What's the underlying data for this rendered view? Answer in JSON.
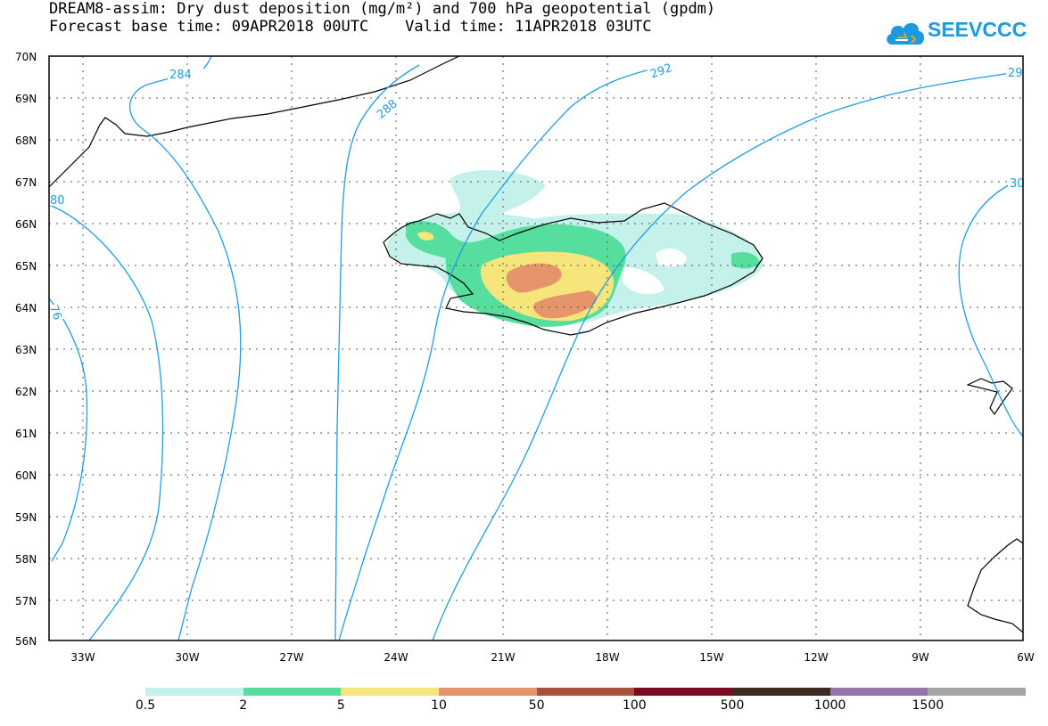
{
  "header": {
    "title_line1": "DREAM8-assim: Dry dust deposition (mg/m²) and 700 hPa geopotential (gpdm)",
    "title_line2": "Forecast base time: 09APR2018 00UTC    Valid time: 11APR2018 03UTC"
  },
  "logo": {
    "text": "SEEVCCC",
    "icon": "cloud-icon"
  },
  "map": {
    "lat_labels": [
      "70N",
      "69N",
      "68N",
      "67N",
      "66N",
      "65N",
      "64N",
      "63N",
      "62N",
      "61N",
      "60N",
      "59N",
      "58N",
      "57N",
      "56N"
    ],
    "lon_labels": [
      "33W",
      "30W",
      "27W",
      "24W",
      "21W",
      "18W",
      "15W",
      "12W",
      "9W",
      "6W"
    ],
    "contour_labels": [
      "284",
      "288",
      "292",
      "29",
      "30",
      "76",
      "80"
    ],
    "contour_color": "#1f9ee0"
  },
  "legend": {
    "colors": [
      "#c4f1ea",
      "#56de9e",
      "#f6e57a",
      "#e6946c",
      "#a8503c",
      "#7d0a22",
      "#3b2a1d",
      "#9476a8",
      "#a6a6a6"
    ],
    "labels": [
      "0.5",
      "2",
      "5",
      "10",
      "50",
      "100",
      "500",
      "1000",
      "1500"
    ]
  }
}
